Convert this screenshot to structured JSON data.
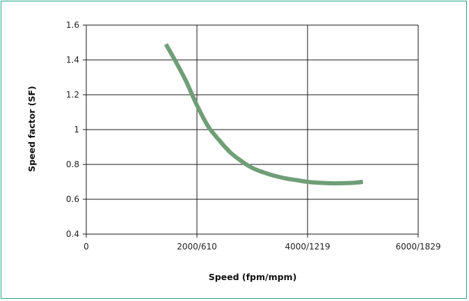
{
  "chart_data": {
    "type": "line",
    "xlabel": "Speed (fpm/mpm)",
    "ylabel": "Speed factor (SF)",
    "xlim": [
      0,
      6000
    ],
    "ylim": [
      0.4,
      1.6
    ],
    "x_ticks": [
      {
        "value": 0,
        "label": "0"
      },
      {
        "value": 2000,
        "label": "2000/610"
      },
      {
        "value": 4000,
        "label": "4000/1219"
      },
      {
        "value": 6000,
        "label": "6000/1829"
      }
    ],
    "y_ticks": [
      {
        "value": 0.4,
        "label": "0.4"
      },
      {
        "value": 0.6,
        "label": "0.6"
      },
      {
        "value": 0.8,
        "label": "0.8"
      },
      {
        "value": 1.0,
        "label": "1"
      },
      {
        "value": 1.2,
        "label": "1.2"
      },
      {
        "value": 1.4,
        "label": "1.4"
      },
      {
        "value": 1.6,
        "label": "1.6"
      }
    ],
    "grid": true,
    "series": [
      {
        "color": "#6f9e77",
        "x": [
          1440,
          1600,
          1800,
          2000,
          2200,
          2400,
          2600,
          2800,
          3000,
          3200,
          3400,
          3600,
          3800,
          4000,
          4200,
          4400,
          4600,
          4800,
          5000
        ],
        "y": [
          1.49,
          1.4,
          1.28,
          1.14,
          1.02,
          0.94,
          0.87,
          0.82,
          0.78,
          0.755,
          0.735,
          0.72,
          0.71,
          0.7,
          0.695,
          0.692,
          0.692,
          0.694,
          0.7
        ]
      }
    ]
  }
}
